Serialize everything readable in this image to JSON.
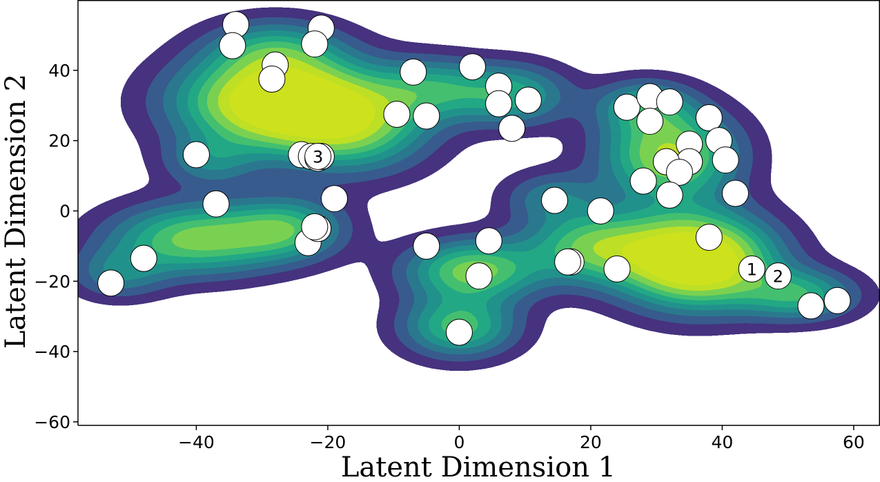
{
  "chart_data": {
    "type": "scatter",
    "subtype": "kde-contour-with-points",
    "xlabel": "Latent Dimension 1",
    "ylabel": "Latent Dimension 2",
    "xlim": [
      -58,
      64
    ],
    "ylim": [
      -61,
      60
    ],
    "x_ticks": [
      -40,
      -20,
      0,
      20,
      40,
      60
    ],
    "y_ticks": [
      -60,
      -40,
      -20,
      0,
      20,
      40
    ],
    "x_tick_labels": [
      "−40",
      "−20",
      "0",
      "20",
      "40",
      "60"
    ],
    "y_tick_labels": [
      "−60",
      "−40",
      "−20",
      "0",
      "20",
      "40"
    ],
    "grid": false,
    "colormap": "viridis",
    "level_colors": [
      "#46327e",
      "#375b8d",
      "#2a788e",
      "#21918c",
      "#22a884",
      "#44bf70",
      "#7ad151",
      "#bddf26",
      "#cde11d"
    ],
    "marker_color": "#ffffff",
    "marker_edge_color": "#000000",
    "points": [
      {
        "x": -34,
        "y": 53
      },
      {
        "x": -34.5,
        "y": 47
      },
      {
        "x": -21,
        "y": 52
      },
      {
        "x": -22,
        "y": 47.5
      },
      {
        "x": -28,
        "y": 41.5
      },
      {
        "x": -28.5,
        "y": 37.5
      },
      {
        "x": -7,
        "y": 39.5
      },
      {
        "x": 2,
        "y": 41
      },
      {
        "x": 6,
        "y": 35.5
      },
      {
        "x": 6,
        "y": 30.5
      },
      {
        "x": 10.5,
        "y": 31.5
      },
      {
        "x": -9.5,
        "y": 27.5
      },
      {
        "x": -5,
        "y": 27
      },
      {
        "x": 8,
        "y": 23.5
      },
      {
        "x": -40,
        "y": 16
      },
      {
        "x": -24,
        "y": 16
      },
      {
        "x": -22.5,
        "y": 15.5
      },
      {
        "x": -21.5,
        "y": 15
      },
      {
        "x": -21,
        "y": 15.5
      },
      {
        "x": -37,
        "y": 2
      },
      {
        "x": -19,
        "y": 3.5
      },
      {
        "x": -23,
        "y": -9
      },
      {
        "x": -21.5,
        "y": -5
      },
      {
        "x": -22,
        "y": -4.5
      },
      {
        "x": -48,
        "y": -13.5
      },
      {
        "x": -53,
        "y": -20.5
      },
      {
        "x": -5,
        "y": -10
      },
      {
        "x": 4.5,
        "y": -8.5
      },
      {
        "x": 3,
        "y": -18.5
      },
      {
        "x": 0,
        "y": -34.5
      },
      {
        "x": 14.5,
        "y": 3
      },
      {
        "x": 21.5,
        "y": 0
      },
      {
        "x": 17,
        "y": -14.5
      },
      {
        "x": 16.5,
        "y": -14.5
      },
      {
        "x": 24,
        "y": -16.5
      },
      {
        "x": 25.5,
        "y": 29.5
      },
      {
        "x": 29,
        "y": 32.5
      },
      {
        "x": 32,
        "y": 31
      },
      {
        "x": 29,
        "y": 25.5
      },
      {
        "x": 38,
        "y": 26.5
      },
      {
        "x": 39.5,
        "y": 20
      },
      {
        "x": 35,
        "y": 19
      },
      {
        "x": 35,
        "y": 14
      },
      {
        "x": 31.5,
        "y": 14
      },
      {
        "x": 33.5,
        "y": 11
      },
      {
        "x": 40.5,
        "y": 14.5
      },
      {
        "x": 28,
        "y": 8.5
      },
      {
        "x": 32,
        "y": 4.5
      },
      {
        "x": 42,
        "y": 5
      },
      {
        "x": 38,
        "y": -7.5
      },
      {
        "x": 53.5,
        "y": -27
      },
      {
        "x": 57.5,
        "y": -25.5
      },
      {
        "x": 44.5,
        "y": -16.5,
        "label": "1"
      },
      {
        "x": 48.5,
        "y": -18.5,
        "label": "2"
      },
      {
        "x": -21.5,
        "y": 15.5,
        "label": "3"
      }
    ],
    "density_centers": [
      {
        "x": -28,
        "y": 31,
        "sx": 10,
        "sy": 9,
        "w": 1.1
      },
      {
        "x": -16,
        "y": 24,
        "sx": 8,
        "sy": 9,
        "w": 0.6
      },
      {
        "x": -28,
        "y": 46,
        "sx": 7,
        "sy": 6,
        "w": 0.4
      },
      {
        "x": -40,
        "y": -8,
        "sx": 9,
        "sy": 7,
        "w": 0.7
      },
      {
        "x": -26,
        "y": -5,
        "sx": 6,
        "sy": 6,
        "w": 0.5
      },
      {
        "x": -52,
        "y": -18,
        "sx": 5,
        "sy": 5,
        "w": 0.3
      },
      {
        "x": 2,
        "y": -17,
        "sx": 7,
        "sy": 6,
        "w": 0.7
      },
      {
        "x": 0,
        "y": -33,
        "sx": 6,
        "sy": 6,
        "w": 0.6
      },
      {
        "x": 8,
        "y": 33,
        "sx": 6,
        "sy": 6,
        "w": 0.5
      },
      {
        "x": -4,
        "y": 35,
        "sx": 6,
        "sy": 6,
        "w": 0.4
      },
      {
        "x": 36,
        "y": -14,
        "sx": 8,
        "sy": 9,
        "w": 1.2
      },
      {
        "x": 32,
        "y": 16,
        "sx": 7,
        "sy": 9,
        "w": 0.8
      },
      {
        "x": 20,
        "y": -10,
        "sx": 7,
        "sy": 7,
        "w": 0.6
      },
      {
        "x": 52,
        "y": -24,
        "sx": 6,
        "sy": 5,
        "w": 0.5
      },
      {
        "x": 28,
        "y": 30,
        "sx": 5,
        "sy": 5,
        "w": 0.4
      },
      {
        "x": 14,
        "y": 4,
        "sx": 5,
        "sy": 5,
        "w": 0.3
      },
      {
        "x": -38,
        "y": 14,
        "sx": 5,
        "sy": 5,
        "w": 0.3
      }
    ]
  }
}
